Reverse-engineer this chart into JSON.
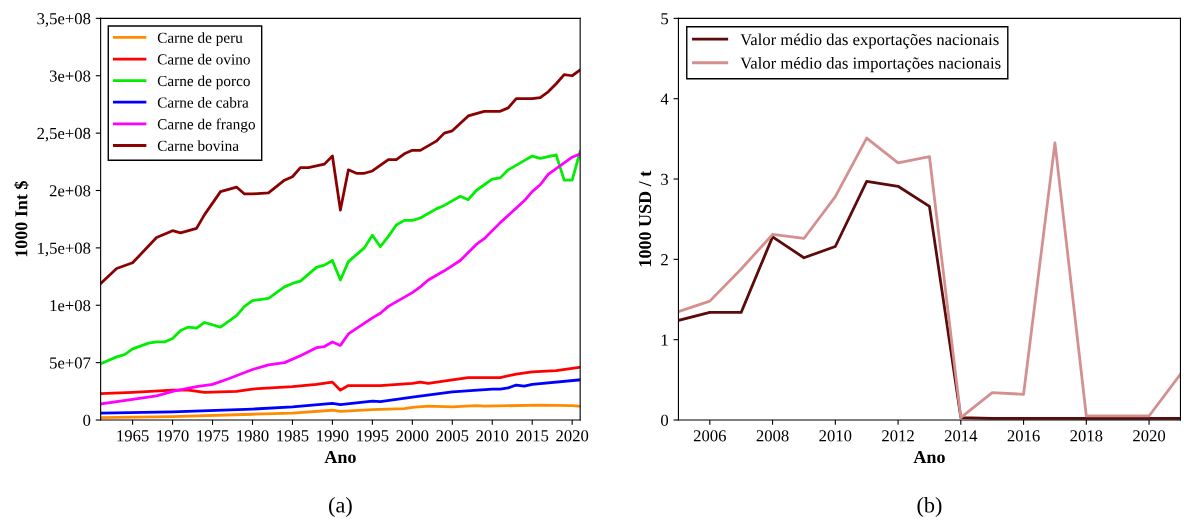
{
  "chart_data": [
    {
      "type": "line",
      "xlabel": "Ano",
      "ylabel": "1000 Int $",
      "annotations": [
        "(a)"
      ],
      "xlim": [
        1961,
        2021
      ],
      "xticks": [
        1965,
        1970,
        1975,
        1980,
        1985,
        1990,
        1995,
        2000,
        2005,
        2010,
        2015,
        2020
      ],
      "ylim": [
        0,
        350000000.0
      ],
      "yticks": [
        {
          "value": 0,
          "label": "0"
        },
        {
          "value": 50000000.0,
          "label": "5e+07"
        },
        {
          "value": 100000000.0,
          "label": "1e+08"
        },
        {
          "value": 150000000.0,
          "label": "1,5e+08"
        },
        {
          "value": 200000000.0,
          "label": "2e+08"
        },
        {
          "value": 250000000.0,
          "label": "2,5e+08"
        },
        {
          "value": 300000000.0,
          "label": "3e+08"
        },
        {
          "value": 350000000.0,
          "label": "3,5e+08"
        }
      ],
      "grid": false,
      "legend": "top left",
      "series": [
        {
          "name": "Carne de peru",
          "color": "#ff8c00",
          "x": [
            1961,
            1970,
            1980,
            1985,
            1990,
            1991,
            1995,
            1999,
            2000,
            2002,
            2005,
            2008,
            2009,
            2016,
            2020,
            2021
          ],
          "values": [
            2000000.0,
            3000000.0,
            5000000.0,
            6000000.0,
            8500000.0,
            7500000.0,
            9000000.0,
            10000000.0,
            11000000.0,
            12000000.0,
            11500000.0,
            12500000.0,
            12000000.0,
            13000000.0,
            12500000.0,
            12000000.0
          ]
        },
        {
          "name": "Carne de ovino",
          "color": "#ff0000",
          "x": [
            1961,
            1965,
            1970,
            1972,
            1974,
            1978,
            1980,
            1985,
            1988,
            1990,
            1991,
            1992,
            1996,
            2000,
            2001,
            2002,
            2005,
            2007,
            2011,
            2013,
            2015,
            2018,
            2021
          ],
          "values": [
            23000000.0,
            24000000.0,
            26000000.0,
            26000000.0,
            24000000.0,
            25000000.0,
            27000000.0,
            29000000.0,
            31000000.0,
            33000000.0,
            26000000.0,
            30000000.0,
            30000000.0,
            32000000.0,
            33000000.0,
            32000000.0,
            35000000.0,
            37000000.0,
            37000000.0,
            40000000.0,
            42000000.0,
            43000000.0,
            46000000.0
          ]
        },
        {
          "name": "Carne de porco",
          "color": "#00ee00",
          "x": [
            1961,
            1963,
            1964,
            1965,
            1967,
            1968,
            1969,
            1970,
            1971,
            1972,
            1973,
            1974,
            1976,
            1977,
            1978,
            1979,
            1980,
            1982,
            1984,
            1985,
            1986,
            1988,
            1989,
            1990,
            1991,
            1992,
            1994,
            1995,
            1996,
            1997,
            1998,
            1999,
            2000,
            2001,
            2003,
            2004,
            2006,
            2007,
            2008,
            2010,
            2011,
            2012,
            2014,
            2015,
            2016,
            2018,
            2019,
            2020,
            2021
          ],
          "values": [
            49000000.0,
            55000000.0,
            57000000.0,
            62000000.0,
            67000000.0,
            68000000.0,
            68000000.0,
            71000000.0,
            78000000.0,
            81000000.0,
            80000000.0,
            85000000.0,
            81000000.0,
            86000000.0,
            91000000.0,
            99000000.0,
            104000000.0,
            106000000.0,
            116000000.0,
            119000000.0,
            121000000.0,
            133000000.0,
            135000000.0,
            139000000.0,
            122000000.0,
            138000000.0,
            150000000.0,
            161000000.0,
            151000000.0,
            160000000.0,
            170000000.0,
            174000000.0,
            174000000.0,
            176000000.0,
            184000000.0,
            187000000.0,
            195000000.0,
            192000000.0,
            200000000.0,
            210000000.0,
            211000000.0,
            218000000.0,
            226000000.0,
            230000000.0,
            228000000.0,
            231000000.0,
            209000000.0,
            209000000.0,
            234000000.0
          ]
        },
        {
          "name": "Carne de cabra",
          "color": "#0000ff",
          "x": [
            1961,
            1970,
            1980,
            1985,
            1990,
            1991,
            1995,
            1996,
            2000,
            2005,
            2010,
            2011,
            2012,
            2013,
            2014,
            2015,
            2021
          ],
          "values": [
            6000000.0,
            7000000.0,
            9500000.0,
            11500000.0,
            14500000.0,
            13500000.0,
            16500000.0,
            16000000.0,
            20000000.0,
            24500000.0,
            27000000.0,
            27000000.0,
            28000000.0,
            30500000.0,
            29500000.0,
            31000000.0,
            35000000.0
          ]
        },
        {
          "name": "Carne de frango",
          "color": "#ff00ff",
          "x": [
            1961,
            1965,
            1968,
            1970,
            1973,
            1975,
            1977,
            1980,
            1982,
            1984,
            1986,
            1988,
            1989,
            1990,
            1991,
            1992,
            1995,
            1996,
            1997,
            2000,
            2001,
            2002,
            2004,
            2006,
            2008,
            2009,
            2011,
            2014,
            2015,
            2016,
            2017,
            2018,
            2020,
            2021
          ],
          "values": [
            14000000.0,
            18000000.0,
            21000000.0,
            25000000.0,
            29000000.0,
            31000000.0,
            36000000.0,
            44000000.0,
            48000000.0,
            50000000.0,
            56000000.0,
            63000000.0,
            64000000.0,
            68000000.0,
            65000000.0,
            75000000.0,
            89000000.0,
            93000000.0,
            99000000.0,
            111000000.0,
            116000000.0,
            122000000.0,
            130000000.0,
            139000000.0,
            153000000.0,
            158000000.0,
            172000000.0,
            191000000.0,
            199000000.0,
            205000000.0,
            214000000.0,
            219000000.0,
            229000000.0,
            232000000.0
          ]
        },
        {
          "name": "Carne bovina",
          "color": "#8b0000",
          "x": [
            1961,
            1963,
            1965,
            1968,
            1970,
            1971,
            1973,
            1974,
            1976,
            1978,
            1979,
            1980,
            1982,
            1984,
            1985,
            1986,
            1987,
            1989,
            1990,
            1991,
            1992,
            1993,
            1994,
            1995,
            1997,
            1998,
            1999,
            2000,
            2001,
            2003,
            2004,
            2005,
            2007,
            2009,
            2011,
            2012,
            2013,
            2015,
            2016,
            2017,
            2018,
            2019,
            2020,
            2021
          ],
          "values": [
            119000000.0,
            132000000.0,
            137000000.0,
            159000000.0,
            165000000.0,
            163000000.0,
            167000000.0,
            179000000.0,
            199000000.0,
            203000000.0,
            197000000.0,
            197000000.0,
            198000000.0,
            209000000.0,
            212000000.0,
            220000000.0,
            220000000.0,
            223000000.0,
            230000000.0,
            183000000.0,
            218000000.0,
            215000000.0,
            215000000.0,
            217000000.0,
            227000000.0,
            227000000.0,
            232000000.0,
            235000000.0,
            235000000.0,
            243000000.0,
            250000000.0,
            252000000.0,
            265000000.0,
            269000000.0,
            269000000.0,
            272000000.0,
            280000000.0,
            280000000.0,
            281000000.0,
            286000000.0,
            293000000.0,
            301000000.0,
            300000000.0,
            305000000.0
          ]
        }
      ]
    },
    {
      "type": "line",
      "xlabel": "Ano",
      "ylabel": "1000 USD / t",
      "annotations": [
        "(b)"
      ],
      "xlim": [
        2005,
        2021
      ],
      "xticks": [
        2006,
        2008,
        2010,
        2012,
        2014,
        2016,
        2018,
        2020
      ],
      "ylim": [
        0,
        5
      ],
      "yticks": [
        0,
        1,
        2,
        3,
        4,
        5
      ],
      "grid": false,
      "legend": "top left",
      "x": [
        2005,
        2006,
        2007,
        2008,
        2009,
        2010,
        2011,
        2012,
        2013,
        2014,
        2015,
        2016,
        2017,
        2018,
        2019,
        2020,
        2021
      ],
      "series": [
        {
          "name": "Valor médio das exportações nacionais",
          "color": "#5c0a0a",
          "values": [
            1.24,
            1.34,
            1.34,
            2.28,
            2.02,
            2.16,
            2.97,
            2.91,
            2.66,
            0.03,
            0.02,
            0.02,
            0.02,
            0.02,
            0.02,
            0.02,
            0.02
          ]
        },
        {
          "name": "Valor médio das importações nacionais",
          "color": "#d4908f",
          "values": [
            1.35,
            1.48,
            1.88,
            2.31,
            2.26,
            2.78,
            3.51,
            3.2,
            3.28,
            0.03,
            0.34,
            0.32,
            3.45,
            0.05,
            0.05,
            0.05,
            0.57
          ]
        }
      ]
    }
  ]
}
